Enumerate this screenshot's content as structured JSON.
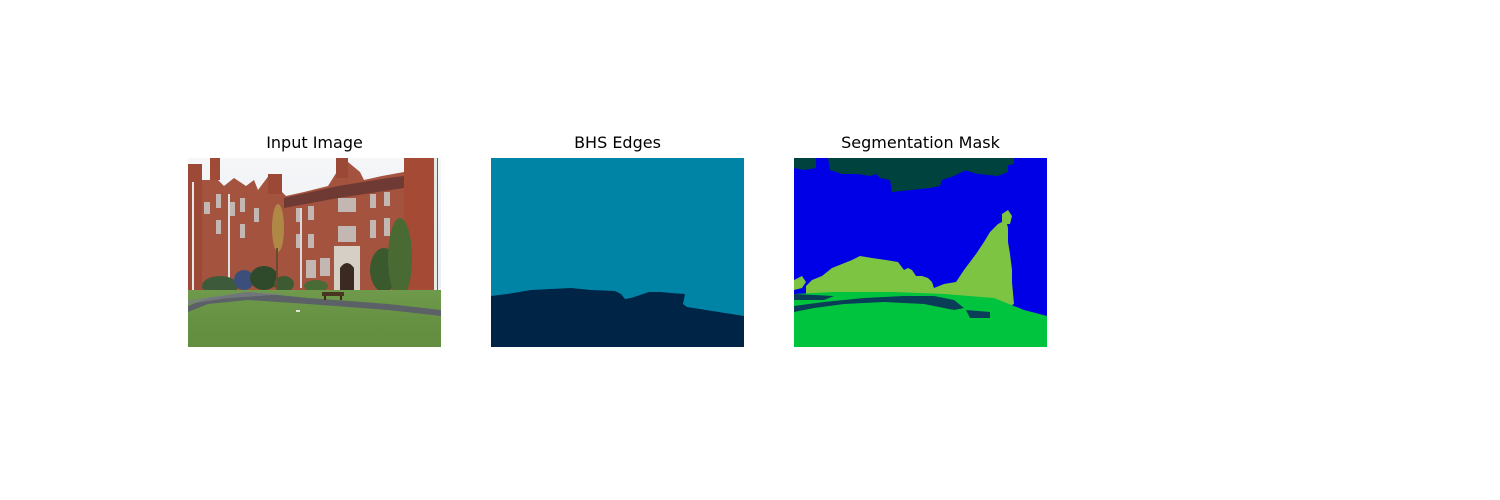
{
  "panels": [
    {
      "title": "Input Image"
    },
    {
      "title": "BHS Edges"
    },
    {
      "title": "Segmentation Mask"
    }
  ],
  "colors": {
    "edges_background": "#0084A6",
    "edges_foreground": "#002445",
    "mask_sky": "#0000E6",
    "mask_building_top": "#00423D",
    "mask_vegetation": "#7DC443",
    "mask_ground": "#00C43D",
    "mask_path": "#0A3D57"
  }
}
